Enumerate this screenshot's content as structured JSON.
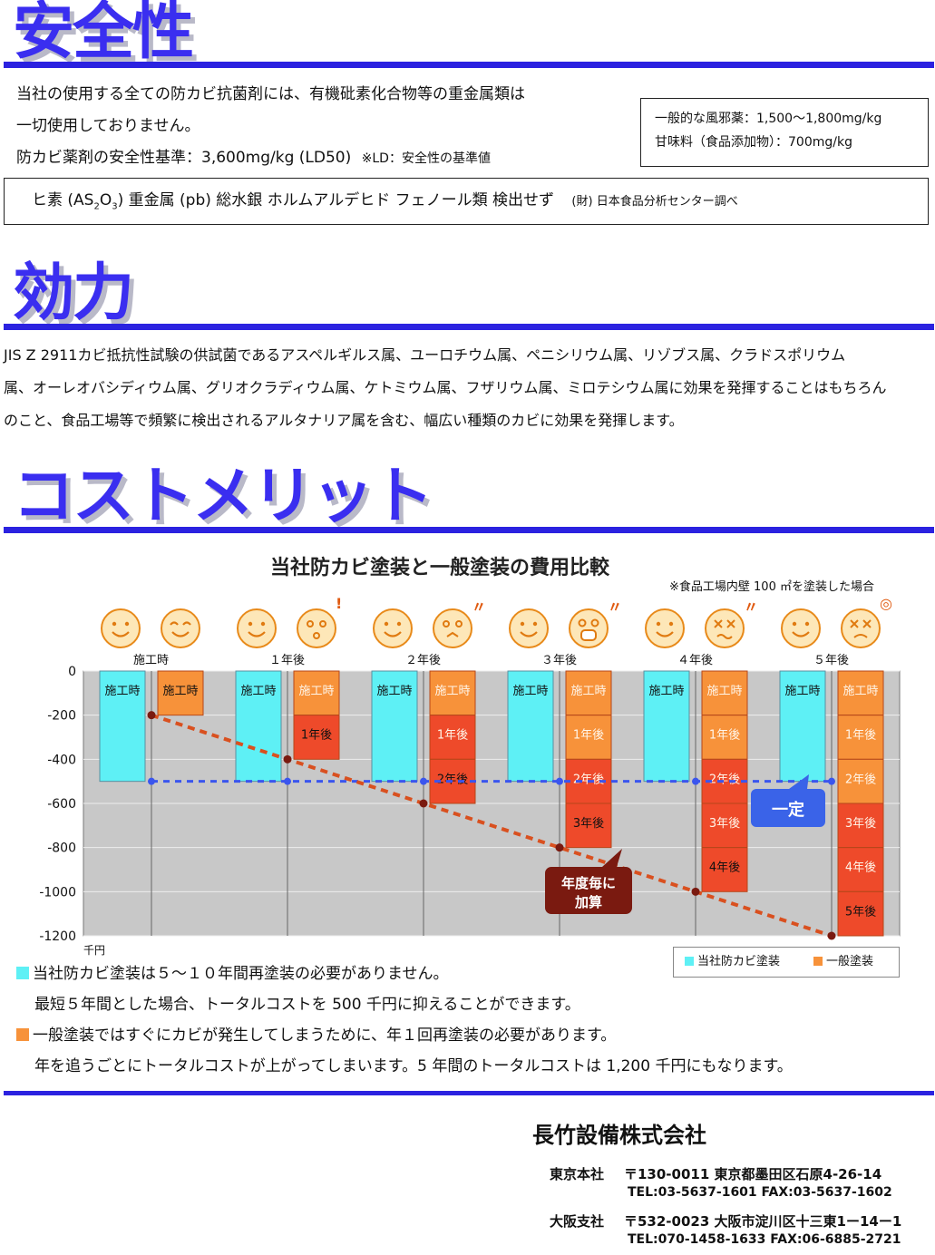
{
  "safety": {
    "title": "安全性",
    "line1": "当社の使用する全ての防カビ抗菌剤には、有機砒素化合物等の重金属類は",
    "line2": "一切使用しておりません。",
    "line3_main": "防カビ薬剤の安全性基準：3,600mg/kg (LD50)",
    "line3_note": "※LD：安全性の基準値",
    "compare1": "一般的な風邪薬：1,500〜1,800mg/kg",
    "compare2": "甘味料（食品添加物）：700mg/kg",
    "detect_a": "ヒ素 (AS",
    "detect_sub1": "2",
    "detect_b": "O",
    "detect_sub2": "3",
    "detect_c": ")  重金属 (pb)  総水銀   ホルムアルデヒド   フェノール類   検出せず",
    "detect_source": "(財) 日本食品分析センター調べ"
  },
  "efficacy": {
    "title": "効力",
    "line1": "JIS Z 2911カビ抵抗性試験の供試菌であるアスペルギルス属、ユーロチウム属、ペニシリウム属、リゾブス属、クラドスポリウム",
    "line2": "属、オーレオバシディウム属、グリオクラディウム属、ケトミウム属、フザリウム属、ミロテシウム属に効果を発揮することはもちろん",
    "line3": "のこと、食品工場等で頻繁に検出されるアルタナリア属を含む、幅広い種類のカビに効果を発揮します。"
  },
  "cost": {
    "title": "コストメリット",
    "chart_title": "当社防カビ塗装と一般塗装の費用比較",
    "chart_note": "※食品工場内壁 100 ㎡を塗装した場合",
    "unit": "千円",
    "callout_constant": "一定",
    "callout_add_1": "年度毎に",
    "callout_add_2": "加算",
    "bullet1_line1": "当社防カビ塗装は５〜１０年間再塗装の必要がありません。",
    "bullet1_line2": "最短５年間とした場合、トータルコストを 500 千円に抑えることができます。",
    "bullet2_line1": "一般塗装ではすぐにカビが発生してしまうために、年１回再塗装の必要があります。",
    "bullet2_line2": "年を追うごとにトータルコストが上がってしまいます。5 年間のトータルコストは 1,200 千円にもなります。"
  },
  "company": {
    "name": "長竹設備株式会社",
    "tokyo_label": "東京本社",
    "tokyo_addr": "〒130-0011  東京都墨田区石原4-26-14",
    "tokyo_tel": "TEL:03-5637-1601    FAX:03-5637-1602",
    "osaka_label": "大阪支社",
    "osaka_addr": "〒532-0023  大阪市淀川区十三東1ー14ー1",
    "osaka_tel": "TEL:070-1458-1633    FAX:06-6885-2721"
  },
  "colors": {
    "accent": "#2b22e0",
    "ours": "#5ef0f5",
    "general": "#f7923a",
    "general_dark": "#ee3a2a",
    "plot_bg": "#c8c8c8",
    "total_line": "#d9501f"
  },
  "chart_data": {
    "type": "bar",
    "categories": [
      "施工時",
      "１年後",
      "２年後",
      "３年後",
      "４年後",
      "５年後"
    ],
    "ylim": [
      -1200,
      0
    ],
    "yticks": [
      "0",
      "-200",
      "-400",
      "-600",
      "-800",
      "-1000",
      "-1200"
    ],
    "legend_position": "bottom-right",
    "series": [
      {
        "name": "当社防カビ塗装",
        "values": [
          -500,
          -500,
          -500,
          -500,
          -500,
          -500
        ],
        "segments": [
          [
            "施工時"
          ],
          [
            "施工時"
          ],
          [
            "施工時"
          ],
          [
            "施工時"
          ],
          [
            "施工時"
          ],
          [
            "施工時"
          ]
        ]
      },
      {
        "name": "一般塗装",
        "values": [
          -200,
          -400,
          -600,
          -800,
          -1000,
          -1200
        ],
        "segments": [
          [
            "施工時"
          ],
          [
            "施工時",
            "1年後"
          ],
          [
            "施工時",
            "1年後",
            "2年後"
          ],
          [
            "施工時",
            "1年後",
            "2年後",
            "3年後"
          ],
          [
            "施工時",
            "1年後",
            "2年後",
            "3年後",
            "4年後"
          ],
          [
            "施工時",
            "1年後",
            "2年後",
            "3年後",
            "4年後",
            "5年後"
          ]
        ]
      }
    ]
  }
}
